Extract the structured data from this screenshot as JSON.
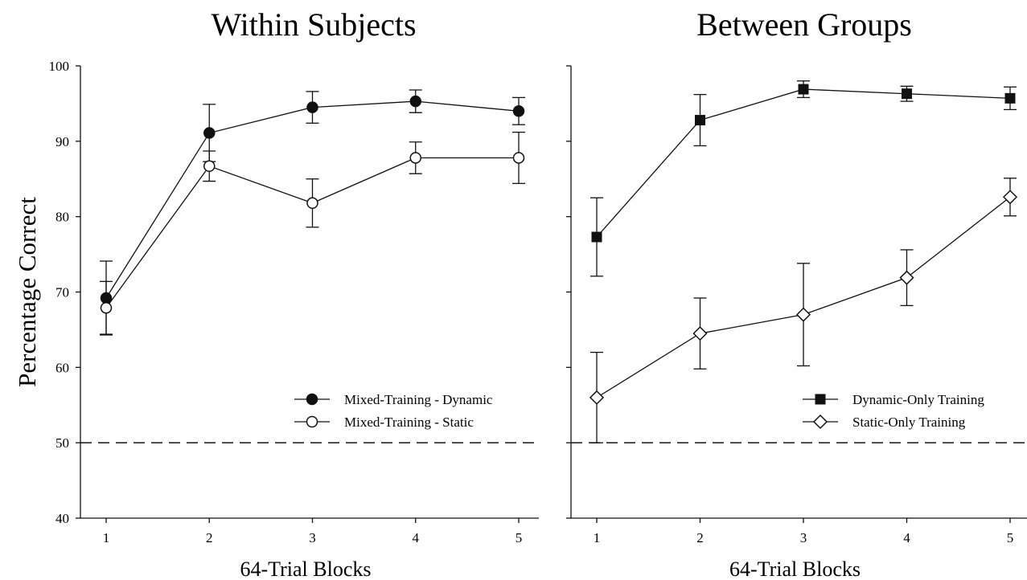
{
  "chart_data": [
    {
      "type": "line",
      "title": "Within Subjects",
      "xlabel": "64-Trial Blocks",
      "ylabel": "Percentage Correct",
      "x": [
        1,
        2,
        3,
        4,
        5
      ],
      "ylim": [
        40,
        100
      ],
      "y_ticks": [
        40,
        50,
        60,
        70,
        80,
        90,
        100
      ],
      "chance_line": 50,
      "legend_position": "lower-right",
      "grid": false,
      "series": [
        {
          "name": "Mixed-Training - Dynamic",
          "marker": "filled-circle",
          "values": [
            69.2,
            91.1,
            94.5,
            95.3,
            94.0
          ],
          "error": [
            4.9,
            3.8,
            2.1,
            1.5,
            1.8
          ]
        },
        {
          "name": "Mixed-Training - Static",
          "marker": "open-circle",
          "values": [
            67.9,
            86.7,
            81.8,
            87.8,
            87.8
          ],
          "error": [
            3.5,
            2.0,
            3.2,
            2.1,
            3.4
          ]
        }
      ]
    },
    {
      "type": "line",
      "title": "Between Groups",
      "xlabel": "64-Trial Blocks",
      "ylabel": "",
      "x": [
        1,
        2,
        3,
        4,
        5
      ],
      "ylim": [
        40,
        100
      ],
      "y_ticks": [
        40,
        50,
        60,
        70,
        80,
        90,
        100
      ],
      "chance_line": 50,
      "legend_position": "lower-right",
      "grid": false,
      "series": [
        {
          "name": "Dynamic-Only Training",
          "marker": "filled-square",
          "values": [
            77.3,
            92.8,
            96.9,
            96.3,
            95.7
          ],
          "error": [
            5.2,
            3.4,
            1.1,
            1.0,
            1.5
          ]
        },
        {
          "name": "Static-Only Training",
          "marker": "open-diamond",
          "values": [
            56.0,
            64.5,
            67.0,
            71.9,
            82.6
          ],
          "error": [
            6.0,
            4.7,
            6.8,
            3.7,
            2.5
          ]
        }
      ]
    }
  ]
}
